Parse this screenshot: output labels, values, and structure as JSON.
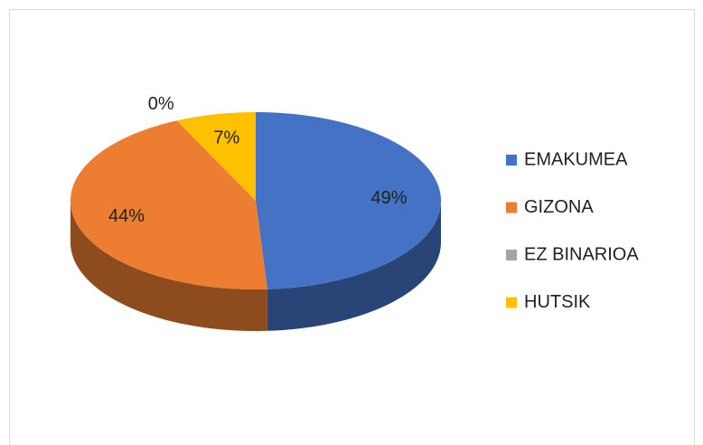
{
  "chart_data": {
    "type": "pie",
    "categories": [
      "EMAKUMEA",
      "GIZONA",
      "EZ BINARIOA",
      "HUTSIK"
    ],
    "values": [
      49,
      44,
      0,
      7
    ],
    "value_labels": [
      "49%",
      "44%",
      "0%",
      "7%"
    ],
    "colors": [
      "#4472c4",
      "#ed7d31",
      "#a5a5a5",
      "#ffc000"
    ],
    "legend": "right"
  }
}
